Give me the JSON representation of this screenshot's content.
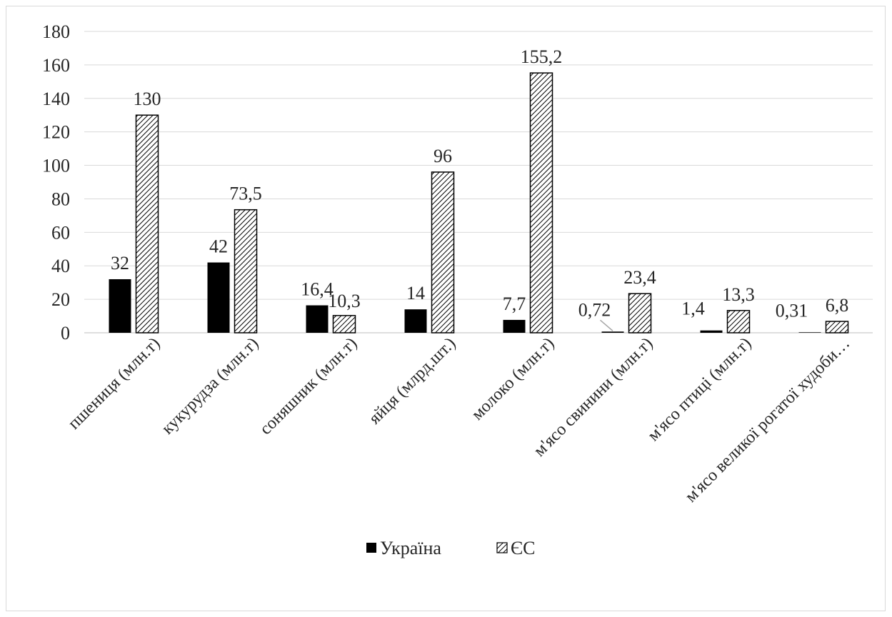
{
  "chart_data": {
    "type": "bar",
    "categories": [
      "пшениця (млн.т)",
      "кукурудза (млн.т)",
      "соняшник (млн.т)",
      "яйця (млрд.шт.)",
      "молоко (млн.т)",
      "м'ясо свинини (млн.т)",
      "м'ясо птиці (млн.т)",
      "м'ясо великої рогатої худоби…"
    ],
    "series": [
      {
        "name": "Україна",
        "values": [
          32,
          42,
          16.4,
          14,
          7.7,
          0.72,
          1.4,
          0.31
        ],
        "labels": [
          "32",
          "42",
          "16,4",
          "14",
          "7,7",
          "0,72",
          "1,4",
          "0,31"
        ],
        "color": "#000000",
        "pattern": "solid"
      },
      {
        "name": "ЄС",
        "values": [
          130,
          73.5,
          10.3,
          96,
          155.2,
          23.4,
          13.3,
          6.8
        ],
        "labels": [
          "130",
          "73,5",
          "10,3",
          "96",
          "155,2",
          "23,4",
          "13,3",
          "6,8"
        ],
        "color": "#000000",
        "pattern": "diagonal-hatch"
      }
    ],
    "ylim": [
      0,
      180
    ],
    "yticks": [
      0,
      20,
      40,
      60,
      80,
      100,
      120,
      140,
      160,
      180
    ],
    "ytick_labels": [
      "0",
      "20",
      "40",
      "60",
      "80",
      "100",
      "120",
      "140",
      "160",
      "180"
    ],
    "grid": true,
    "legend_position": "bottom",
    "title": "",
    "xlabel": "",
    "ylabel": ""
  }
}
